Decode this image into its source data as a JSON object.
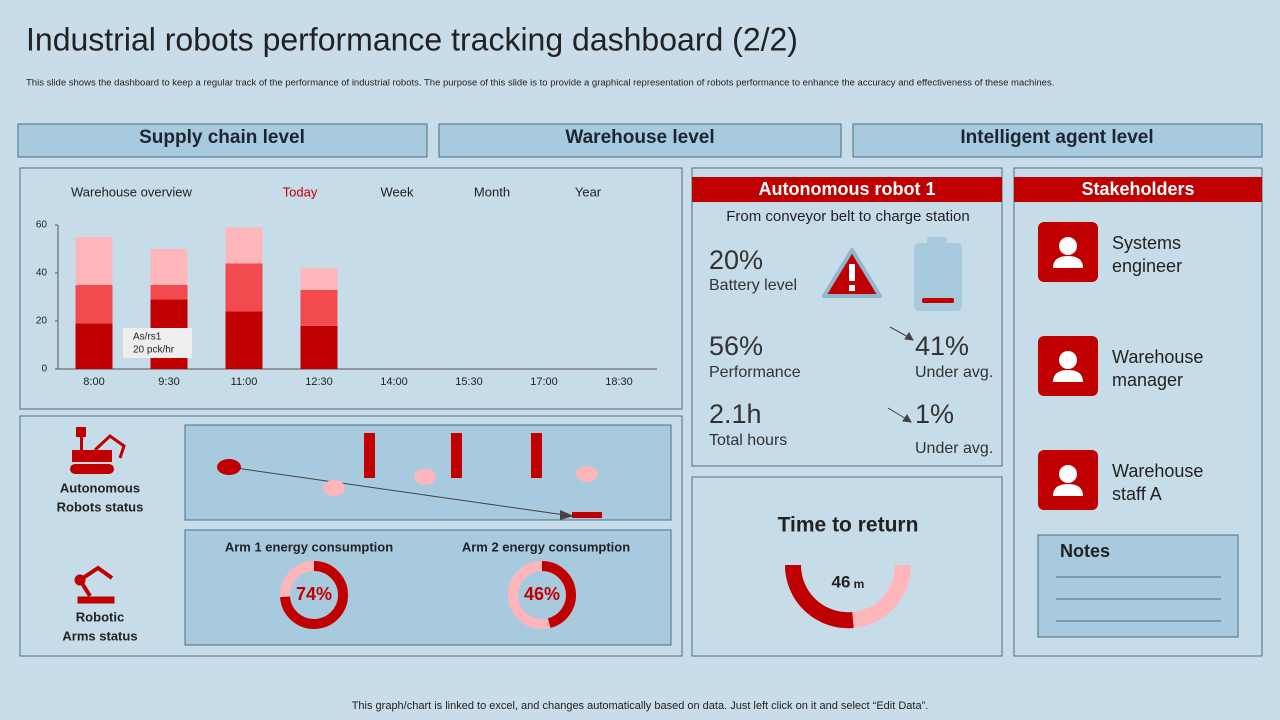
{
  "header": {
    "title": "Industrial robots performance tracking dashboard (2/2)",
    "subtitle": "This slide shows the dashboard to keep a regular track of the performance of industrial robots. The purpose of this slide is to provide a graphical representation of robots performance to enhance the accuracy and effectiveness of these machines."
  },
  "sections": [
    "Supply chain level",
    "Warehouse level",
    "Intelligent agent level"
  ],
  "chart_data": {
    "type": "bar",
    "stacked": true,
    "tabs": [
      "Warehouse overview",
      "Today",
      "Week",
      "Month",
      "Year"
    ],
    "categories": [
      "8:00",
      "9:30",
      "11:00",
      "12:30",
      "14:00",
      "15:30",
      "17:00",
      "18:30"
    ],
    "series": [
      {
        "color": "#c00000",
        "values": [
          19,
          29,
          24,
          18,
          null,
          null,
          null,
          null
        ]
      },
      {
        "color": "#f24a4f",
        "values": [
          16,
          6,
          20,
          15,
          null,
          null,
          null,
          null
        ]
      },
      {
        "color": "#ffb6bb",
        "values": [
          20,
          15,
          15,
          9,
          null,
          null,
          null,
          null
        ]
      }
    ],
    "ylim": [
      0,
      60
    ],
    "yticks": [
      0,
      20,
      40,
      60
    ],
    "tooltip": [
      "As/rs1",
      "20 pck/hr"
    ]
  },
  "status": {
    "robots": [
      "Autonomous",
      "Robots status"
    ],
    "arms": [
      "Robotic",
      "Arms status"
    ],
    "gauges": [
      {
        "title": "Arm 1 energy consumption",
        "value": 74,
        "value_label": "74%"
      },
      {
        "title": "Arm 2 energy consumption",
        "value": 46,
        "value_label": "46%"
      }
    ]
  },
  "robot": {
    "title": "Autonomous robot 1",
    "subtitle": "From conveyor belt to charge station",
    "metrics": [
      {
        "value": "20%",
        "label": "Battery level"
      },
      {
        "value": "56%",
        "label": "Performance"
      },
      {
        "value": "2.1h",
        "label": "Total hours"
      },
      {
        "value": "41%",
        "label": "Under avg."
      },
      {
        "value": "1%",
        "label": "Under avg."
      }
    ]
  },
  "time": {
    "title": "Time to return",
    "value": "46",
    "unit": "m"
  },
  "stakeholders": {
    "title": "Stakeholders",
    "people": [
      [
        "Systems",
        "engineer"
      ],
      [
        "Warehouse",
        "manager"
      ],
      [
        "Warehouse",
        "staff A"
      ]
    ]
  },
  "notes": {
    "title": "Notes"
  },
  "footer": "This graph/chart is linked to excel, and changes automatically based on data. Just left click on it and select “Edit Data”."
}
